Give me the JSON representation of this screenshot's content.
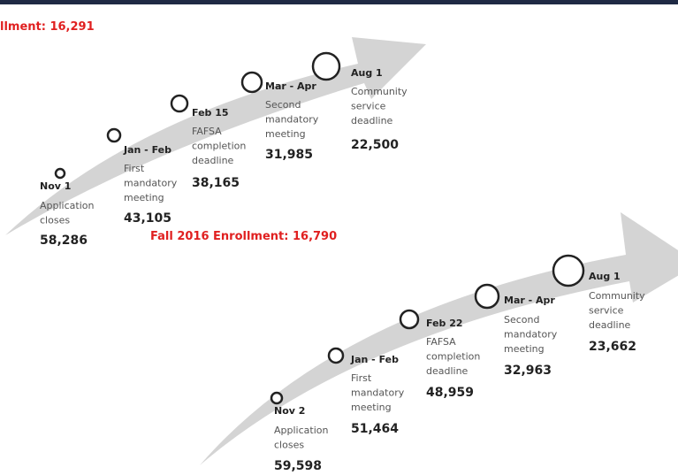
{
  "timelines": [
    {
      "enrollment": "llment: 16,291",
      "milestones": [
        {
          "date": "Nov 1",
          "description": [
            "Application",
            "closes"
          ],
          "count": "58,286"
        },
        {
          "date": "Jan - Feb",
          "description": [
            "First",
            "mandatory",
            "meeting"
          ],
          "count": "43,105"
        },
        {
          "date": "Feb 15",
          "description": [
            "FAFSA",
            "completion",
            "deadline"
          ],
          "count": "38,165"
        },
        {
          "date": "Mar - Apr",
          "description": [
            "Second",
            "mandatory",
            "meeting"
          ],
          "count": "31,985"
        },
        {
          "date": "Aug 1",
          "description": [
            "Community",
            "service",
            "deadline"
          ],
          "count": "22,500"
        }
      ]
    },
    {
      "enrollment": "Fall 2016 Enrollment: 16,790",
      "milestones": [
        {
          "date": "Nov 2",
          "description": [
            "Application",
            "closes"
          ],
          "count": "59,598"
        },
        {
          "date": "Jan - Feb",
          "description": [
            "First",
            "mandatory",
            "meeting"
          ],
          "count": "51,464"
        },
        {
          "date": "Feb 22",
          "description": [
            "FAFSA",
            "completion",
            "deadline"
          ],
          "count": "48,959"
        },
        {
          "date": "Mar - Apr",
          "description": [
            "Second",
            "mandatory",
            "meeting"
          ],
          "count": "32,963"
        },
        {
          "date": "Aug 1",
          "description": [
            "Community",
            "service",
            "deadline"
          ],
          "count": "23,662"
        }
      ]
    }
  ]
}
